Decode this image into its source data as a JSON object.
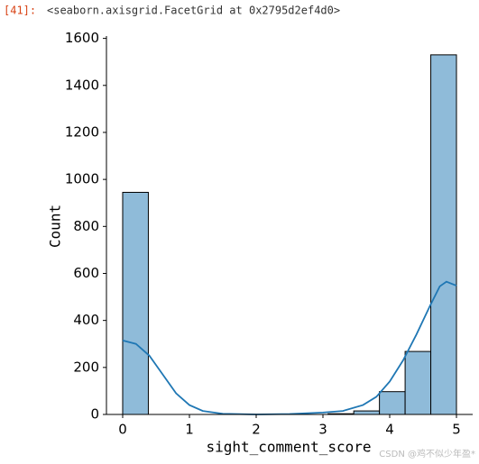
{
  "cell": {
    "prompt": "[41]:",
    "output": "<seaborn.axisgrid.FacetGrid at 0x2795d2ef4d0>"
  },
  "chart_data": {
    "type": "histogram",
    "xlabel": "sight_comment_score",
    "ylabel": "Count",
    "bins": [
      0,
      0.3846,
      0.7692,
      1.1538,
      1.5385,
      1.9231,
      2.3077,
      2.6923,
      3.0769,
      3.4615,
      3.8462,
      4.2308,
      4.6154,
      5
    ],
    "values": [
      945,
      0,
      0,
      0,
      0,
      0,
      0,
      0,
      3,
      15,
      97,
      268,
      1530
    ],
    "color": "#8fbbd9",
    "edgecolor": "#000000",
    "kde": {
      "color": "#1f77b4",
      "x": [
        0,
        0.2,
        0.4,
        0.6,
        0.8,
        1.0,
        1.2,
        1.5,
        2.0,
        2.5,
        3.0,
        3.3,
        3.6,
        3.8,
        4.0,
        4.2,
        4.4,
        4.6,
        4.75,
        4.85,
        5.0
      ],
      "values": [
        315,
        300,
        250,
        170,
        90,
        40,
        15,
        3,
        0,
        2,
        8,
        15,
        40,
        75,
        140,
        230,
        340,
        460,
        545,
        565,
        548
      ]
    },
    "xlim": [
      -0.243,
      5.243
    ],
    "ylim": [
      0,
      1610
    ],
    "xticks": [
      0,
      1,
      2,
      3,
      4,
      5
    ],
    "yticks": [
      0,
      200,
      400,
      600,
      800,
      1000,
      1200,
      1400,
      1600
    ]
  },
  "watermark": "CSDN @鸡不似少年盈*"
}
